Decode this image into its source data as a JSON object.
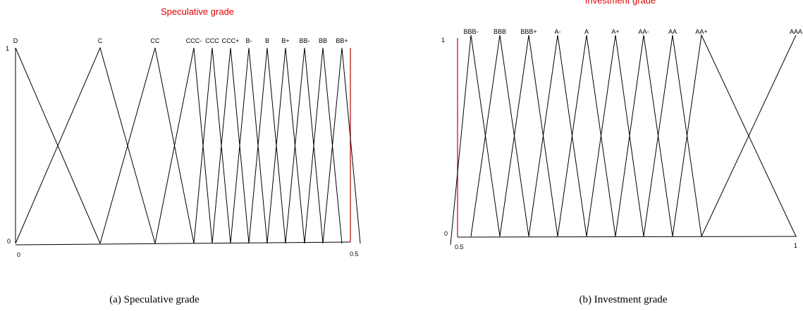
{
  "panel_a": {
    "title": "Speculative grade",
    "caption": "(a) Speculative grade",
    "y_top_label": "1",
    "y_bottom_label": "0",
    "x_left_label": "0",
    "x_right_label": "0.5",
    "terms": [
      "D",
      "C",
      "CC",
      "CCC-",
      "CCC",
      "CCC+",
      "B-",
      "B",
      "B+",
      "BB-",
      "BB",
      "BB+"
    ]
  },
  "panel_b": {
    "title": "Investment grade",
    "caption": "(b) Investment grade",
    "y_top_label": "1",
    "y_bottom_label": "0",
    "x_left_label": "0.5",
    "x_right_label": "1",
    "terms": [
      "BBB-",
      "BBB",
      "BBB+",
      "A-",
      "A",
      "A+",
      "AA-",
      "AA",
      "AA+",
      "AAA"
    ]
  },
  "colors": {
    "title": "#e00000",
    "marker": "#c00000",
    "line": "#000000"
  }
}
